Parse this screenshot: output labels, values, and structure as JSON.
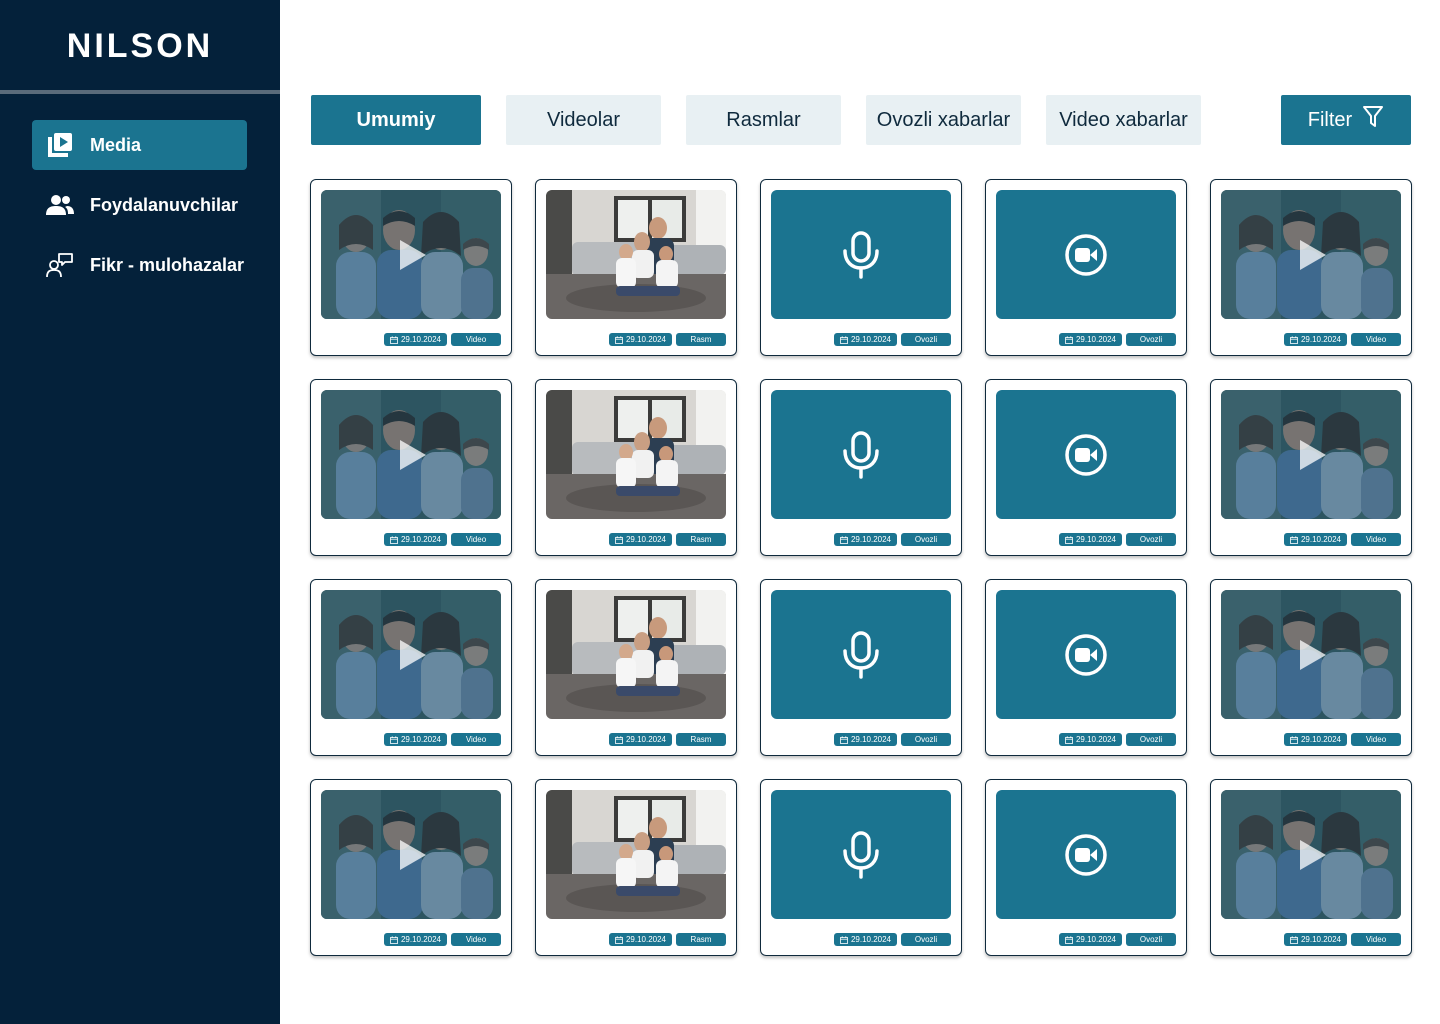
{
  "sidebar": {
    "logo": "NILSON",
    "items": [
      {
        "label": "Media",
        "icon": "media-library-icon",
        "active": true
      },
      {
        "label": "Foydalanuvchilar",
        "icon": "users-icon",
        "active": false
      },
      {
        "label": "Fikr - mulohazalar",
        "icon": "feedback-icon",
        "active": false
      }
    ]
  },
  "tabs": [
    {
      "label": "Umumiy",
      "active": true
    },
    {
      "label": "Videolar",
      "active": false
    },
    {
      "label": "Rasmlar",
      "active": false
    },
    {
      "label": "Ovozli xabarlar",
      "active": false
    },
    {
      "label": "Video xabarlar",
      "active": false
    }
  ],
  "filter": {
    "label": "Filter",
    "icon": "filter-icon"
  },
  "colors": {
    "sidebar": "#04213a",
    "accent": "#1b7490",
    "tab_bg": "#e8f0f3"
  },
  "cards": [
    {
      "kind": "video-photo",
      "date": "29.10.2024",
      "type": "Video"
    },
    {
      "kind": "image-photo",
      "date": "29.10.2024",
      "type": "Rasm"
    },
    {
      "kind": "voice",
      "date": "29.10.2024",
      "type": "Ovozli"
    },
    {
      "kind": "video-message",
      "date": "29.10.2024",
      "type": "Ovozli"
    },
    {
      "kind": "video-photo",
      "date": "29.10.2024",
      "type": "Video"
    },
    {
      "kind": "video-photo",
      "date": "29.10.2024",
      "type": "Video"
    },
    {
      "kind": "image-photo",
      "date": "29.10.2024",
      "type": "Rasm"
    },
    {
      "kind": "voice",
      "date": "29.10.2024",
      "type": "Ovozli"
    },
    {
      "kind": "video-message",
      "date": "29.10.2024",
      "type": "Ovozli"
    },
    {
      "kind": "video-photo",
      "date": "29.10.2024",
      "type": "Video"
    },
    {
      "kind": "video-photo",
      "date": "29.10.2024",
      "type": "Video"
    },
    {
      "kind": "image-photo",
      "date": "29.10.2024",
      "type": "Rasm"
    },
    {
      "kind": "voice",
      "date": "29.10.2024",
      "type": "Ovozli"
    },
    {
      "kind": "video-message",
      "date": "29.10.2024",
      "type": "Ovozli"
    },
    {
      "kind": "video-photo",
      "date": "29.10.2024",
      "type": "Video"
    },
    {
      "kind": "video-photo",
      "date": "29.10.2024",
      "type": "Video"
    },
    {
      "kind": "image-photo",
      "date": "29.10.2024",
      "type": "Rasm"
    },
    {
      "kind": "voice",
      "date": "29.10.2024",
      "type": "Ovozli"
    },
    {
      "kind": "video-message",
      "date": "29.10.2024",
      "type": "Ovozli"
    },
    {
      "kind": "video-photo",
      "date": "29.10.2024",
      "type": "Video"
    }
  ]
}
